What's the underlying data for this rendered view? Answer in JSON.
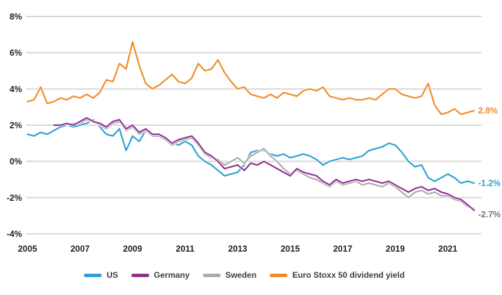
{
  "legend": {
    "items": [
      {
        "label": "US",
        "color": "#2f9fd6"
      },
      {
        "label": "Germany",
        "color": "#8e3390"
      },
      {
        "label": "Sweden",
        "color": "#ababab"
      },
      {
        "label": "Euro Stoxx 50 dividend yield",
        "color": "#ef8c28"
      }
    ]
  },
  "chart_data": {
    "type": "line",
    "title": "",
    "xlabel": "",
    "ylabel": "",
    "x_unit": "year",
    "xlim": [
      2005,
      2022.3
    ],
    "ylim": [
      -4,
      8
    ],
    "grid": "horizontal",
    "legend_position": "bottom",
    "y_ticks": [
      {
        "value": 8,
        "label": "8%"
      },
      {
        "value": 6,
        "label": "6%"
      },
      {
        "value": 4,
        "label": "4%"
      },
      {
        "value": 2,
        "label": "2%"
      },
      {
        "value": 0,
        "label": "0%"
      },
      {
        "value": -2,
        "label": "-2%"
      },
      {
        "value": -4,
        "label": "-4%"
      }
    ],
    "x_ticks": [
      {
        "value": 2005,
        "label": "2005"
      },
      {
        "value": 2007,
        "label": "2007"
      },
      {
        "value": 2009,
        "label": "2009"
      },
      {
        "value": 2011,
        "label": "2011"
      },
      {
        "value": 2013,
        "label": "2013"
      },
      {
        "value": 2015,
        "label": "2015"
      },
      {
        "value": 2017,
        "label": "2017"
      },
      {
        "value": 2019,
        "label": "2019"
      },
      {
        "value": 2021,
        "label": "2021"
      }
    ],
    "series": [
      {
        "name": "US",
        "color": "#2f9fd6",
        "x_start": 2005.0,
        "x_step": 0.25,
        "values": [
          1.5,
          1.4,
          1.6,
          1.5,
          1.7,
          1.9,
          2.0,
          1.9,
          2.0,
          2.1,
          2.3,
          1.9,
          1.5,
          1.4,
          1.8,
          0.6,
          1.4,
          1.1,
          1.7,
          1.4,
          1.5,
          1.3,
          1.0,
          0.9,
          1.1,
          0.9,
          0.3,
          0.0,
          -0.2,
          -0.5,
          -0.8,
          -0.7,
          -0.6,
          -0.2,
          0.5,
          0.6,
          0.6,
          0.4,
          0.3,
          0.4,
          0.2,
          0.3,
          0.4,
          0.3,
          0.1,
          -0.2,
          0.0,
          0.1,
          0.2,
          0.1,
          0.2,
          0.3,
          0.6,
          0.7,
          0.8,
          1.0,
          0.9,
          0.5,
          0.0,
          -0.3,
          -0.2,
          -0.9,
          -1.1,
          -0.9,
          -0.7,
          -0.9,
          -1.2,
          -1.1,
          -1.2
        ],
        "end_label": {
          "text": "-1.2%",
          "color": "#2f9fd6",
          "dy": 4
        }
      },
      {
        "name": "Sweden",
        "color": "#ababab",
        "x_start": 2006.5,
        "x_step": 0.25,
        "values": [
          2.0,
          2.1,
          2.1,
          2.3,
          2.2,
          2.0,
          1.8,
          2.1,
          2.2,
          1.7,
          1.9,
          1.5,
          1.7,
          1.4,
          1.4,
          1.2,
          0.9,
          1.1,
          1.2,
          1.3,
          0.9,
          0.4,
          0.2,
          0.1,
          -0.2,
          0.0,
          0.2,
          -0.1,
          0.3,
          0.5,
          0.7,
          0.3,
          0.0,
          -0.4,
          -0.7,
          -0.5,
          -0.7,
          -0.9,
          -1.0,
          -1.2,
          -1.4,
          -1.1,
          -1.3,
          -1.2,
          -1.1,
          -1.3,
          -1.2,
          -1.3,
          -1.4,
          -1.2,
          -1.4,
          -1.7,
          -2.0,
          -1.7,
          -1.6,
          -1.8,
          -1.7,
          -1.9,
          -1.9,
          -2.1,
          -2.2,
          -2.5,
          -2.6
        ],
        "end_label": null
      },
      {
        "name": "Germany",
        "color": "#8e3390",
        "x_start": 2006.0,
        "x_step": 0.25,
        "values": [
          2.0,
          2.0,
          2.1,
          2.0,
          2.2,
          2.4,
          2.2,
          2.1,
          1.9,
          2.2,
          2.3,
          1.8,
          2.0,
          1.6,
          1.8,
          1.5,
          1.5,
          1.3,
          1.0,
          1.2,
          1.3,
          1.4,
          1.0,
          0.5,
          0.3,
          0.0,
          -0.4,
          -0.3,
          -0.2,
          -0.5,
          -0.1,
          -0.2,
          0.0,
          -0.2,
          -0.4,
          -0.6,
          -0.8,
          -0.4,
          -0.6,
          -0.7,
          -0.8,
          -1.1,
          -1.3,
          -1.0,
          -1.2,
          -1.1,
          -1.0,
          -1.1,
          -1.0,
          -1.1,
          -1.2,
          -1.1,
          -1.3,
          -1.5,
          -1.7,
          -1.5,
          -1.4,
          -1.6,
          -1.5,
          -1.7,
          -1.8,
          -2.0,
          -2.1,
          -2.4,
          -2.7
        ],
        "end_label": {
          "text": "-2.7%",
          "color": "#757575",
          "dy": 10
        }
      },
      {
        "name": "Euro Stoxx 50 dividend yield",
        "color": "#ef8c28",
        "x_start": 2005.0,
        "x_step": 0.25,
        "values": [
          3.3,
          3.4,
          4.1,
          3.2,
          3.3,
          3.5,
          3.4,
          3.6,
          3.5,
          3.7,
          3.5,
          3.8,
          4.5,
          4.4,
          5.4,
          5.1,
          6.6,
          5.3,
          4.3,
          4.0,
          4.2,
          4.5,
          4.8,
          4.4,
          4.3,
          4.6,
          5.4,
          5.0,
          5.1,
          5.6,
          4.9,
          4.4,
          4.0,
          4.1,
          3.7,
          3.6,
          3.5,
          3.7,
          3.5,
          3.8,
          3.7,
          3.6,
          3.9,
          4.0,
          3.9,
          4.1,
          3.6,
          3.5,
          3.4,
          3.5,
          3.4,
          3.4,
          3.5,
          3.4,
          3.7,
          4.0,
          4.0,
          3.7,
          3.6,
          3.5,
          3.6,
          4.3,
          3.1,
          2.6,
          2.7,
          2.9,
          2.6,
          2.7,
          2.8
        ],
        "end_label": {
          "text": "2.8%",
          "color": "#ef8c28",
          "dy": 4
        }
      }
    ]
  }
}
